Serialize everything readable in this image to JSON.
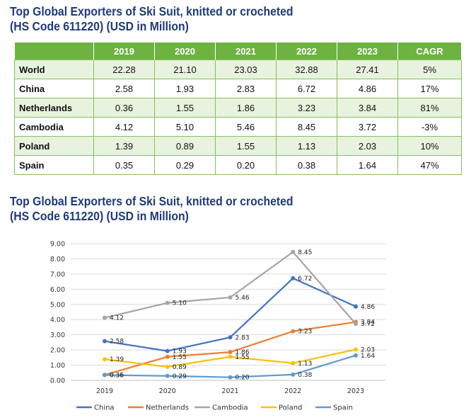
{
  "table": {
    "title_line1": "Top Global Exporters of Ski Suit, knitted or crocheted",
    "title_line2": "(HS Code 611220) (USD in Million)",
    "headers": [
      "",
      "2019",
      "2020",
      "2021",
      "2022",
      "2023",
      "CAGR"
    ],
    "rows": [
      {
        "country": "World",
        "values": [
          "22.28",
          "21.10",
          "23.03",
          "32.88",
          "27.41"
        ],
        "cagr": "5%"
      },
      {
        "country": "China",
        "values": [
          "2.58",
          "1.93",
          "2.83",
          "6.72",
          "4.86"
        ],
        "cagr": "17%"
      },
      {
        "country": "Netherlands",
        "values": [
          "0.36",
          "1.55",
          "1.86",
          "3.23",
          "3.84"
        ],
        "cagr": "81%"
      },
      {
        "country": "Cambodia",
        "values": [
          "4.12",
          "5.10",
          "5.46",
          "8.45",
          "3.72"
        ],
        "cagr": "-3%"
      },
      {
        "country": "Poland",
        "values": [
          "1.39",
          "0.89",
          "1.55",
          "1.13",
          "2.03"
        ],
        "cagr": "10%"
      },
      {
        "country": "Spain",
        "values": [
          "0.35",
          "0.29",
          "0.20",
          "0.38",
          "1.64"
        ],
        "cagr": "47%"
      }
    ]
  },
  "chart_data": {
    "type": "line",
    "title": "Top Global Exporters of Ski Suit, knitted or crocheted (HS Code 611220) (USD in Million)",
    "title_line1": "Top Global Exporters of Ski Suit, knitted or crocheted",
    "title_line2": "(HS Code 611220) (USD in Million)",
    "categories": [
      "2019",
      "2020",
      "2021",
      "2022",
      "2023"
    ],
    "ylim": [
      0,
      9
    ],
    "yticks": [
      "0.00",
      "1.00",
      "2.00",
      "3.00",
      "4.00",
      "5.00",
      "6.00",
      "7.00",
      "8.00",
      "9.00"
    ],
    "grid": true,
    "legend_position": "bottom",
    "series": [
      {
        "name": "China",
        "color": "#4472c4",
        "values": [
          2.58,
          1.93,
          2.83,
          6.72,
          4.86
        ],
        "labels": [
          "2.58",
          "1.93",
          "2.83",
          "6.72",
          "4.86"
        ]
      },
      {
        "name": "Netherlands",
        "color": "#ed7d31",
        "values": [
          0.36,
          1.55,
          1.86,
          3.23,
          3.84
        ],
        "labels": [
          "0.36",
          "1.55",
          "1.86",
          "3.23",
          "3.84"
        ]
      },
      {
        "name": "Cambodia",
        "color": "#a5a5a5",
        "values": [
          4.12,
          5.1,
          5.46,
          8.45,
          3.72
        ],
        "labels": [
          "4.12",
          "5.10",
          "5.46",
          "8.45",
          "3.72"
        ]
      },
      {
        "name": "Poland",
        "color": "#ffc000",
        "values": [
          1.39,
          0.89,
          1.55,
          1.13,
          2.03
        ],
        "labels": [
          "1.39",
          "0.89",
          "1.55",
          "1.13",
          "2.03"
        ]
      },
      {
        "name": "Spain",
        "color": "#5b9bd5",
        "values": [
          0.35,
          0.29,
          0.2,
          0.38,
          1.64
        ],
        "labels": [
          "0.35",
          "0.29",
          "0.20",
          "0.38",
          "1.64"
        ]
      }
    ]
  }
}
